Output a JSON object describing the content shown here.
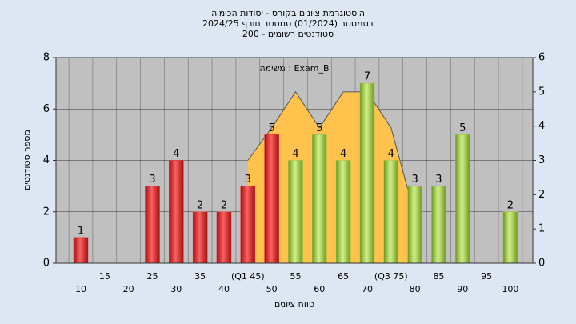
{
  "chart_data": {
    "type": "bar",
    "title": "היסטוגרמת ציונים בקורס - יסודות הכימיה",
    "subtitle": "בסמסטר  (01/2024)  סמסטר חורף 2024/25",
    "subtitle2": "סטודנטים רשומים - 200",
    "annotation": "משימה : Exam_B",
    "x_label": "טווח ציונים",
    "y_label": "מספר סטודנטים",
    "categories": [
      "10",
      "15",
      "20",
      "25",
      "30",
      "35",
      "40",
      "(Q1 45)",
      "50",
      "55",
      "60",
      "65",
      "70",
      "(Q3 75)",
      "80",
      "85",
      "90",
      "95",
      "100"
    ],
    "values": [
      1,
      null,
      null,
      3,
      4,
      2,
      2,
      3,
      5,
      4,
      5,
      4,
      7,
      4,
      3,
      3,
      5,
      null,
      2
    ],
    "colors": [
      "#e02828",
      "#e02828",
      "#e02828",
      "#e02828",
      "#e02828",
      "#e02828",
      "#e02828",
      "#e02828",
      "#e02828",
      "#94c040",
      "#94c040",
      "#94c040",
      "#94c040",
      "#94c040",
      "#94c040",
      "#94c040",
      "#94c040",
      "#94c040",
      "#94c040"
    ],
    "ylim": [
      0,
      8
    ],
    "yticks": [
      0,
      2,
      4,
      6,
      8
    ],
    "y2lim": [
      0,
      6
    ],
    "y2ticks": [
      0,
      1,
      2,
      3,
      4,
      5,
      6
    ],
    "overlay": {
      "type": "area",
      "axis": "y2",
      "color": "#ffc34d",
      "x": [
        45,
        50,
        55,
        60,
        65,
        70,
        75,
        80
      ],
      "values": [
        3,
        3.95,
        5,
        3.95,
        5,
        5,
        3.95,
        1.4
      ]
    },
    "grid": true
  }
}
